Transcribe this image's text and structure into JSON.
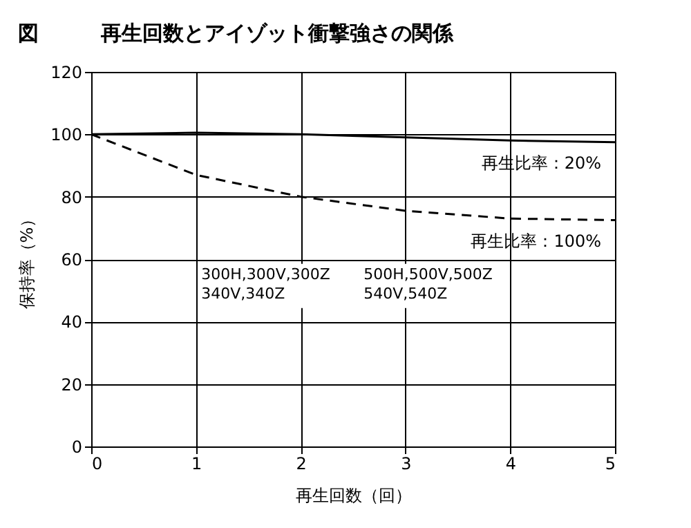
{
  "chart_data": {
    "type": "line",
    "title": "図　　　再生回数とアイゾット衝撃強さの関係",
    "xlabel": "再生回数（回）",
    "ylabel": "保持率（%）",
    "x": [
      0,
      1,
      2,
      3,
      4,
      5
    ],
    "series": [
      {
        "name": "再生比率：20%",
        "color": "#000000",
        "line_style": "solid",
        "values": [
          100,
          100.5,
          100,
          99,
          98,
          97.5
        ]
      },
      {
        "name": "再生比率：100%",
        "color": "#000000",
        "line_style": "dashed",
        "values": [
          100,
          87,
          80,
          75.5,
          73,
          72.5
        ]
      }
    ],
    "annotations": [
      "300H,300V,300Z\n340V,340Z",
      "500H,500V,500Z\n540V,540Z"
    ],
    "xlim": [
      0,
      5
    ],
    "xticks": [
      0,
      1,
      2,
      3,
      4,
      5
    ],
    "ylim": [
      0,
      120
    ],
    "yticks": [
      0,
      20,
      40,
      60,
      80,
      100,
      120
    ],
    "grid": true,
    "marker": "none"
  }
}
